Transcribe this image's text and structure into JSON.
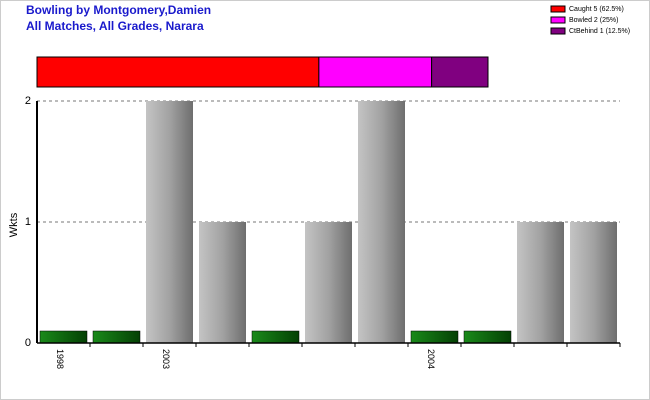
{
  "chart_data": [
    {
      "type": "stacked-bar",
      "title": "Bowling by Montgomery,Damien",
      "subtitle": "All Matches, All Grades, Narara",
      "legend": "top-right",
      "series": [
        {
          "name": "Caught 5 (62.5%)",
          "color": "#ff0000",
          "values": [
            5
          ]
        },
        {
          "name": "Bowled 2 (25%)",
          "color": "#ff00ff",
          "values": [
            2
          ]
        },
        {
          "name": "CtBehind 1 (12.5%)",
          "color": "#800080",
          "values": [
            1
          ]
        }
      ]
    },
    {
      "type": "bar",
      "ylabel": "Wkts",
      "categories": [
        "1998",
        null,
        "2003",
        null,
        null,
        null,
        null,
        "2004",
        null,
        null,
        null
      ],
      "values": [
        0,
        0,
        2,
        1,
        0,
        1,
        2,
        0,
        0,
        1,
        1
      ],
      "color": "#a0a0a0",
      "zero_color": "#0a7a0a",
      "ylim": [
        0,
        2
      ],
      "yticks": [
        0,
        1,
        2
      ],
      "grid": true
    }
  ]
}
